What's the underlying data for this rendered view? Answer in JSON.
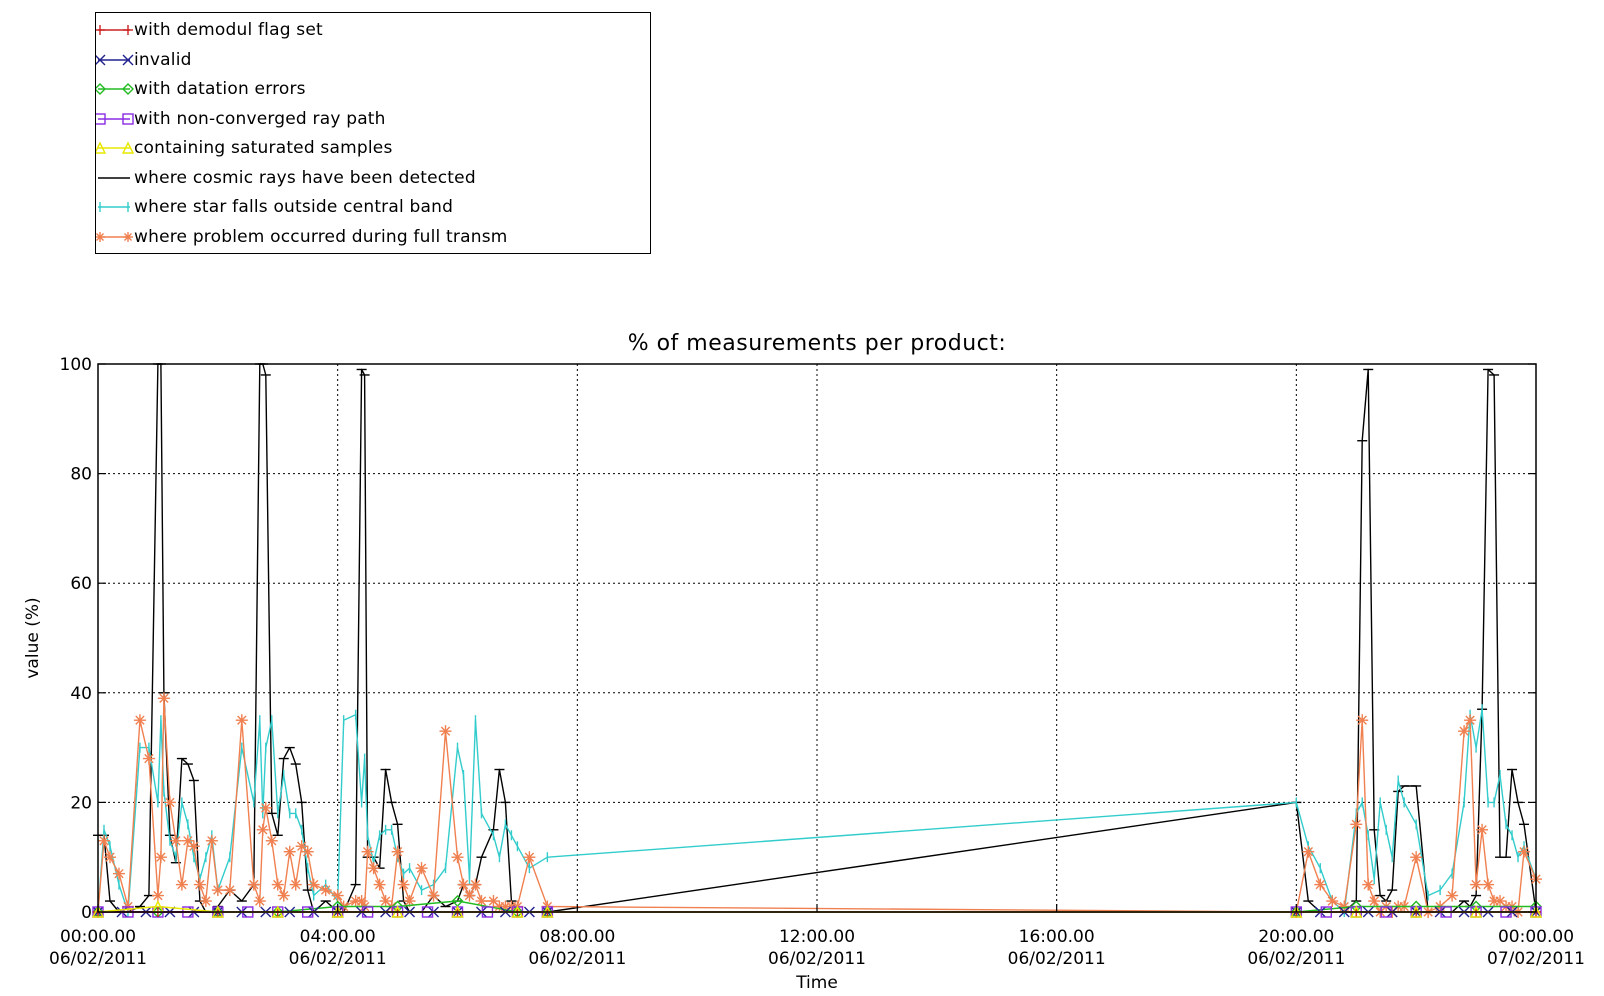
{
  "legend": {
    "items": [
      {
        "label": "with demodul flag set",
        "color": "#cc2222",
        "marker": "plus"
      },
      {
        "label": "invalid",
        "color": "#22228f",
        "marker": "x"
      },
      {
        "label": "with datation errors",
        "color": "#22bb22",
        "marker": "diamond"
      },
      {
        "label": "with non-converged ray path",
        "color": "#8a2be2",
        "marker": "square"
      },
      {
        "label": "containing saturated samples",
        "color": "#e8e800",
        "marker": "triangle"
      },
      {
        "label": "where cosmic rays have been detected",
        "color": "#000000",
        "marker": "none"
      },
      {
        "label": "where star falls outside central band",
        "color": "#33cccc",
        "marker": "bar"
      },
      {
        "label": "where problem occurred during full transm",
        "color": "#f08050",
        "marker": "star"
      }
    ]
  },
  "chart_data": {
    "type": "line",
    "title": "% of measurements per product:",
    "xlabel": "Time",
    "ylabel": "value (%)",
    "ylim": [
      0,
      100
    ],
    "xlim_hours": [
      0,
      24
    ],
    "grid": true,
    "x_ticks": [
      {
        "hours": 0,
        "line1": "00:00.00",
        "line2": "06/02/2011"
      },
      {
        "hours": 4,
        "line1": "04:00.00",
        "line2": "06/02/2011"
      },
      {
        "hours": 8,
        "line1": "08:00.00",
        "line2": "06/02/2011"
      },
      {
        "hours": 12,
        "line1": "12:00.00",
        "line2": "06/02/2011"
      },
      {
        "hours": 16,
        "line1": "16:00.00",
        "line2": "06/02/2011"
      },
      {
        "hours": 20,
        "line1": "20:00.00",
        "line2": "06/02/2011"
      },
      {
        "hours": 24,
        "line1": "00:00.00",
        "line2": "07/02/2011"
      }
    ],
    "y_ticks": [
      0,
      20,
      40,
      60,
      80,
      100
    ],
    "series": [
      {
        "name": "where cosmic rays have been detected",
        "color": "#000000",
        "marker": "dash",
        "x": [
          0.0,
          0.1,
          0.2,
          0.35,
          0.5,
          0.7,
          0.85,
          1.0,
          1.05,
          1.1,
          1.2,
          1.3,
          1.4,
          1.5,
          1.6,
          1.7,
          1.8,
          1.9,
          2.0,
          2.2,
          2.4,
          2.6,
          2.7,
          2.75,
          2.8,
          2.9,
          3.0,
          3.1,
          3.2,
          3.3,
          3.4,
          3.5,
          3.6,
          3.8,
          4.0,
          4.1,
          4.3,
          4.4,
          4.45,
          4.5,
          4.6,
          4.7,
          4.8,
          4.9,
          5.0,
          5.1,
          5.2,
          5.4,
          5.6,
          5.8,
          6.0,
          6.1,
          6.2,
          6.3,
          6.4,
          6.6,
          6.7,
          6.8,
          6.9,
          7.0,
          7.2,
          7.5,
          20.0,
          20.2,
          20.4,
          20.6,
          20.8,
          21.0,
          21.1,
          21.2,
          21.3,
          21.4,
          21.5,
          21.6,
          21.7,
          21.8,
          22.0,
          22.2,
          22.4,
          22.6,
          22.8,
          22.9,
          23.0,
          23.1,
          23.2,
          23.3,
          23.4,
          23.5,
          23.6,
          23.7,
          23.8,
          24.0
        ],
        "y": [
          14,
          14,
          2,
          0,
          0,
          1,
          3,
          100,
          100,
          40,
          14,
          9,
          28,
          27,
          24,
          2,
          0,
          0,
          1,
          4,
          2,
          5,
          100,
          100,
          98,
          18,
          14,
          28,
          30,
          27,
          20,
          4,
          0,
          2,
          0,
          0,
          5,
          99,
          98,
          10,
          10,
          8,
          26,
          20,
          16,
          2,
          0,
          0,
          3,
          1,
          2,
          5,
          3,
          5,
          10,
          15,
          26,
          20,
          2,
          0,
          0,
          0,
          20,
          2,
          0,
          0,
          0,
          2,
          86,
          99,
          15,
          3,
          2,
          4,
          22,
          23,
          23,
          0,
          0,
          0,
          2,
          1,
          3,
          37,
          99,
          98,
          10,
          10,
          26,
          20,
          16,
          0
        ]
      },
      {
        "name": "where star falls outside central band",
        "color": "#33cccc",
        "marker": "bar",
        "x": [
          0.0,
          0.1,
          0.2,
          0.35,
          0.5,
          0.7,
          0.85,
          1.0,
          1.05,
          1.1,
          1.2,
          1.3,
          1.4,
          1.5,
          1.6,
          1.7,
          1.8,
          1.9,
          2.0,
          2.2,
          2.4,
          2.6,
          2.7,
          2.75,
          2.8,
          2.9,
          3.0,
          3.1,
          3.2,
          3.3,
          3.4,
          3.5,
          3.6,
          3.8,
          4.0,
          4.1,
          4.3,
          4.4,
          4.45,
          4.5,
          4.6,
          4.7,
          4.8,
          4.9,
          5.0,
          5.1,
          5.2,
          5.4,
          5.6,
          5.8,
          6.0,
          6.1,
          6.2,
          6.3,
          6.4,
          6.6,
          6.7,
          6.8,
          6.9,
          7.0,
          7.2,
          7.5,
          20.0,
          20.2,
          20.4,
          20.6,
          20.8,
          21.0,
          21.1,
          21.2,
          21.3,
          21.4,
          21.5,
          21.6,
          21.7,
          21.8,
          22.0,
          22.2,
          22.4,
          22.6,
          22.8,
          22.9,
          23.0,
          23.1,
          23.2,
          23.3,
          23.4,
          23.5,
          23.6,
          23.7,
          23.8,
          24.0
        ],
        "y": [
          0,
          15,
          12,
          5,
          0,
          30,
          30,
          20,
          35,
          22,
          13,
          10,
          20,
          16,
          10,
          6,
          10,
          14,
          4,
          10,
          30,
          20,
          35,
          18,
          30,
          35,
          18,
          25,
          18,
          18,
          15,
          8,
          3,
          5,
          2,
          35,
          36,
          20,
          28,
          14,
          9,
          14,
          15,
          15,
          10,
          7,
          8,
          4,
          5,
          8,
          30,
          25,
          6,
          35,
          18,
          14,
          10,
          16,
          14,
          12,
          8,
          10,
          20,
          12,
          8,
          2,
          0,
          18,
          20,
          14,
          6,
          20,
          15,
          10,
          24,
          20,
          16,
          3,
          4,
          7,
          20,
          36,
          30,
          37,
          20,
          20,
          25,
          16,
          14,
          10,
          12,
          6
        ]
      },
      {
        "name": "where problem occurred during full transm",
        "color": "#f08050",
        "marker": "star",
        "x": [
          0.0,
          0.1,
          0.2,
          0.35,
          0.5,
          0.7,
          0.85,
          1.0,
          1.05,
          1.1,
          1.2,
          1.3,
          1.4,
          1.5,
          1.6,
          1.7,
          1.8,
          1.9,
          2.0,
          2.2,
          2.4,
          2.6,
          2.7,
          2.75,
          2.8,
          2.9,
          3.0,
          3.1,
          3.2,
          3.3,
          3.4,
          3.5,
          3.6,
          3.8,
          4.0,
          4.1,
          4.3,
          4.4,
          4.45,
          4.5,
          4.6,
          4.7,
          4.8,
          4.9,
          5.0,
          5.1,
          5.2,
          5.4,
          5.6,
          5.8,
          6.0,
          6.1,
          6.2,
          6.3,
          6.4,
          6.6,
          6.7,
          6.8,
          6.9,
          7.0,
          7.2,
          7.5,
          20.0,
          20.2,
          20.4,
          20.6,
          20.8,
          21.0,
          21.1,
          21.2,
          21.3,
          21.4,
          21.5,
          21.6,
          21.7,
          21.8,
          22.0,
          22.2,
          22.4,
          22.6,
          22.8,
          22.9,
          23.0,
          23.1,
          23.2,
          23.3,
          23.4,
          23.5,
          23.6,
          23.7,
          23.8,
          24.0
        ],
        "y": [
          0,
          13,
          10,
          7,
          1,
          35,
          28,
          3,
          10,
          39,
          20,
          13,
          5,
          13,
          12,
          5,
          2,
          13,
          4,
          4,
          35,
          5,
          2,
          15,
          19,
          13,
          5,
          3,
          11,
          5,
          12,
          11,
          5,
          4,
          3,
          1,
          2,
          2,
          1,
          11,
          8,
          5,
          2,
          1,
          11,
          5,
          2,
          8,
          3,
          33,
          10,
          5,
          3,
          5,
          2,
          2,
          1,
          1,
          1,
          1,
          10,
          1,
          0,
          11,
          5,
          2,
          1,
          16,
          35,
          5,
          2,
          0,
          1,
          0,
          1,
          1,
          10,
          0,
          1,
          3,
          33,
          35,
          5,
          15,
          5,
          2,
          2,
          1,
          1,
          0,
          11,
          6
        ]
      },
      {
        "name": "with datation errors",
        "color": "#22bb22",
        "marker": "diamond",
        "x": [
          0.0,
          1.0,
          2.0,
          3.0,
          4.0,
          5.0,
          6.0,
          7.0,
          7.5,
          20.0,
          21.0,
          22.0,
          23.0,
          24.0
        ],
        "y": [
          0,
          0,
          0,
          0,
          1,
          1,
          2,
          0,
          0,
          0,
          1,
          1,
          1,
          1
        ]
      },
      {
        "name": "invalid",
        "color": "#22228f",
        "marker": "x",
        "x": [
          0.0,
          0.4,
          0.8,
          1.2,
          1.6,
          2.0,
          2.4,
          2.8,
          3.2,
          3.6,
          4.0,
          4.4,
          4.8,
          5.2,
          5.6,
          6.0,
          6.4,
          6.8,
          7.2,
          7.5,
          20.0,
          20.4,
          20.8,
          21.2,
          21.6,
          22.0,
          22.4,
          22.8,
          23.2,
          23.6,
          24.0
        ],
        "y": [
          0,
          0,
          0,
          0,
          0,
          0,
          0,
          0,
          0,
          0,
          0,
          0,
          0,
          0,
          0,
          0,
          0,
          0,
          0,
          0,
          0,
          0,
          0,
          0,
          0,
          0,
          0,
          0,
          0,
          0,
          0
        ]
      },
      {
        "name": "with non-converged ray path",
        "color": "#8a2be2",
        "marker": "square",
        "x": [
          0.0,
          0.5,
          1.0,
          1.5,
          2.0,
          2.5,
          3.0,
          3.5,
          4.0,
          4.5,
          5.0,
          5.5,
          6.0,
          6.5,
          7.0,
          7.5,
          20.0,
          20.5,
          21.0,
          21.5,
          22.0,
          22.5,
          23.0,
          23.5,
          24.0
        ],
        "y": [
          0,
          0,
          0,
          0,
          0,
          0,
          0,
          0,
          0,
          0,
          0,
          0,
          0,
          0,
          0,
          0,
          0,
          0,
          0,
          0,
          0,
          0,
          0,
          0,
          0
        ]
      },
      {
        "name": "with demodul flag set",
        "color": "#cc2222",
        "marker": "plus",
        "x": [
          0.0,
          1.0,
          2.0,
          3.0,
          4.0,
          5.0,
          6.0,
          7.0,
          7.5,
          20.0,
          21.0,
          22.0,
          23.0,
          24.0
        ],
        "y": [
          0,
          0,
          0,
          0,
          0,
          0,
          0,
          0,
          0,
          0,
          0,
          0,
          0,
          0
        ]
      },
      {
        "name": "containing saturated samples",
        "color": "#e8e800",
        "marker": "triangle",
        "x": [
          0.0,
          1.0,
          2.0,
          3.0,
          4.0,
          5.0,
          6.0,
          7.0,
          7.5,
          20.0,
          21.0,
          22.0,
          23.0,
          24.0
        ],
        "y": [
          0,
          1,
          0,
          0,
          0,
          0,
          0,
          0,
          0,
          0,
          0,
          0,
          0,
          0
        ]
      }
    ]
  }
}
